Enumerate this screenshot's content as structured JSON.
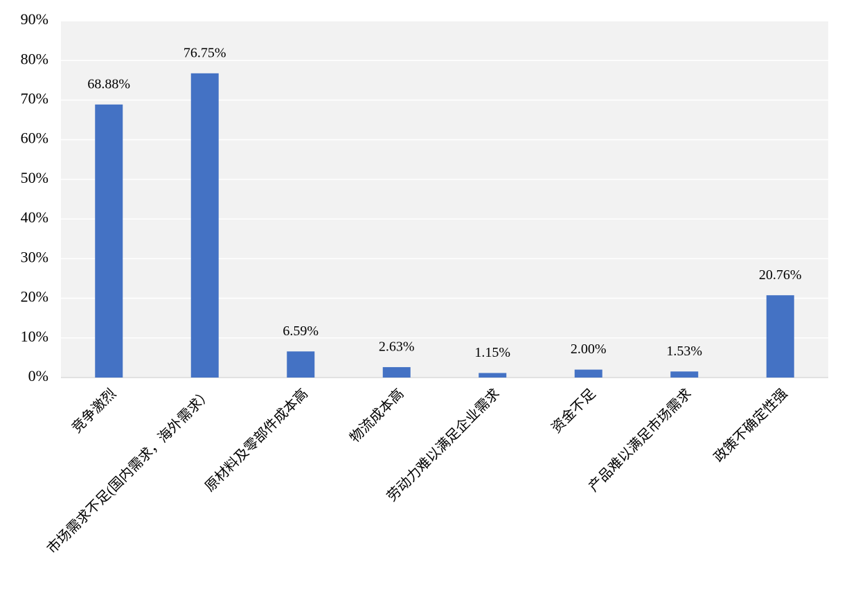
{
  "chart_data": {
    "type": "bar",
    "categories": [
      "竞争激烈",
      "市场需求不足(国内需求，海外需求）",
      "原材料及零部件成本高",
      "物流成本高",
      "劳动力难以满足企业需求",
      "资金不足",
      "产品难以满足市场需求",
      "政策不确定性强"
    ],
    "values": [
      68.88,
      76.75,
      6.59,
      2.63,
      1.15,
      2.0,
      1.53,
      20.76
    ],
    "value_labels": [
      "68.88%",
      "76.75%",
      "6.59%",
      "2.63%",
      "1.15%",
      "2.00%",
      "1.53%",
      "20.76%"
    ],
    "color": "#4472c4",
    "ylim": [
      0,
      90
    ],
    "yticks": [
      {
        "value": 0,
        "label": "0%"
      },
      {
        "value": 10,
        "label": "10%"
      },
      {
        "value": 20,
        "label": "20%"
      },
      {
        "value": 30,
        "label": "30%"
      },
      {
        "value": 40,
        "label": "40%"
      },
      {
        "value": 50,
        "label": "50%"
      },
      {
        "value": 60,
        "label": "60%"
      },
      {
        "value": 70,
        "label": "70%"
      },
      {
        "value": 80,
        "label": "80%"
      },
      {
        "value": 90,
        "label": "90%"
      }
    ],
    "grid": true
  }
}
